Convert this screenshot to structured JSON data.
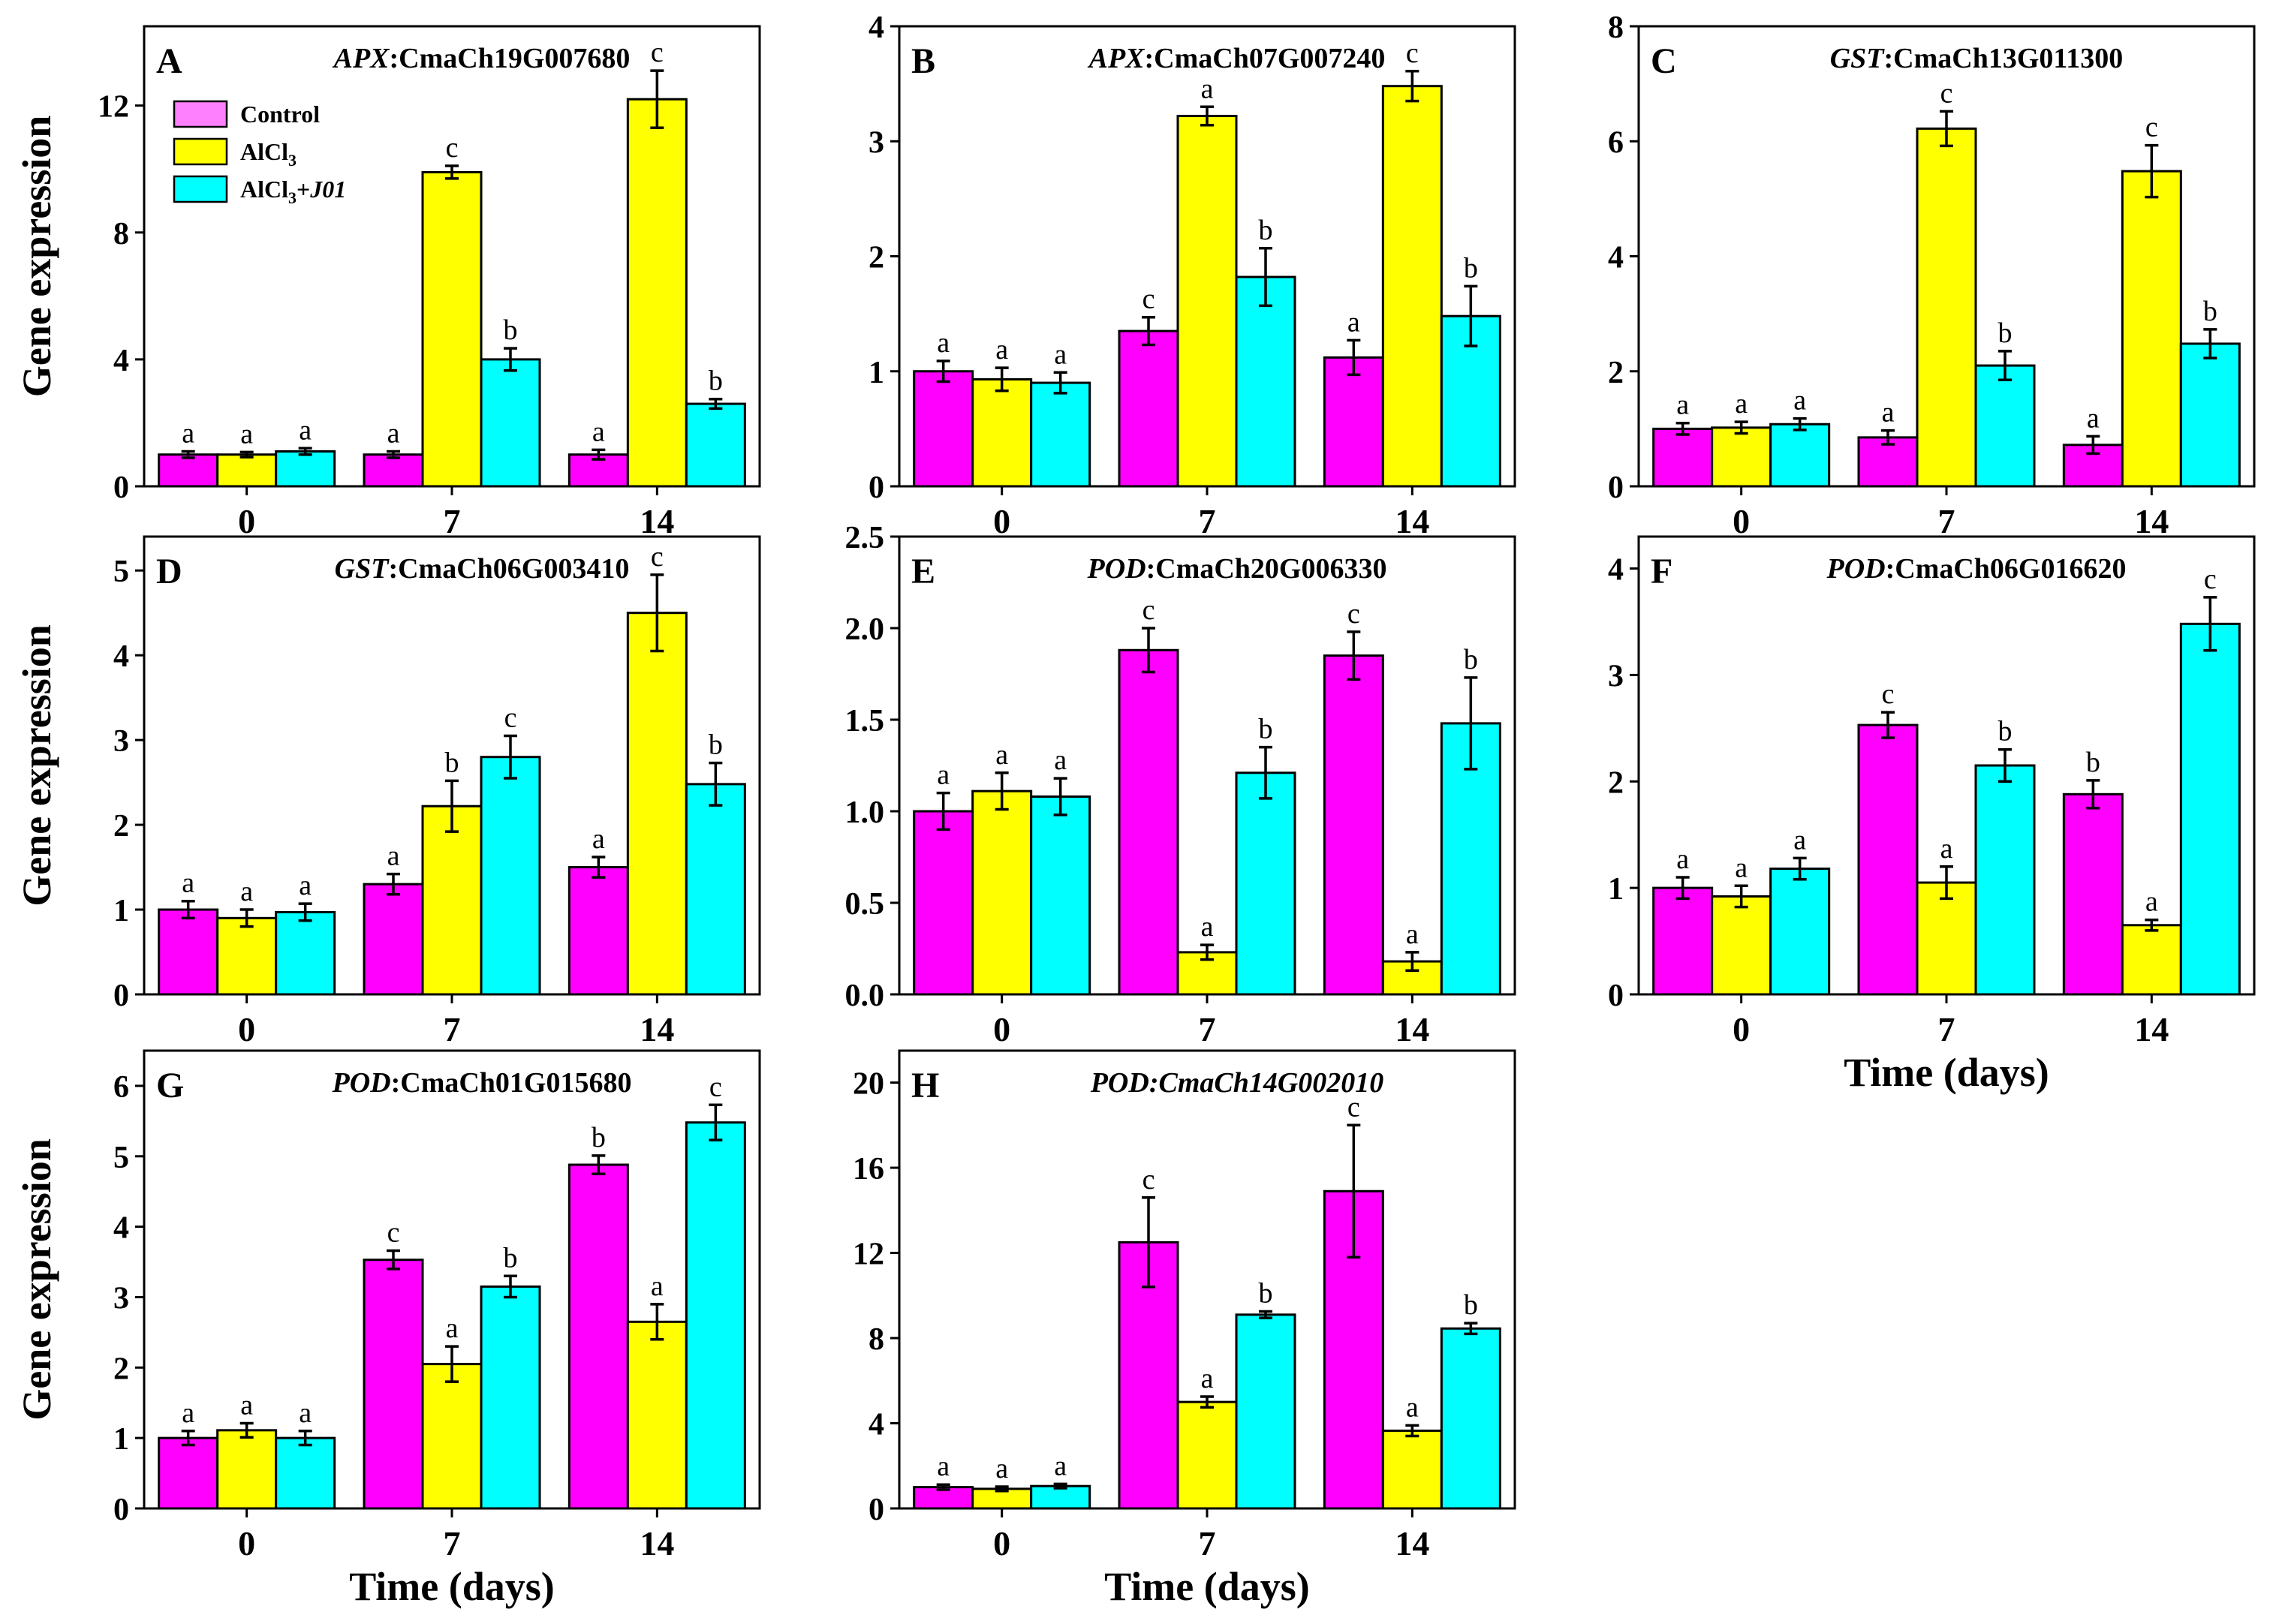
{
  "colors": {
    "control": "#ff00ff",
    "alcl3": "#ffff00",
    "alcl3_j01": "#00ffff",
    "control_legend": "#ff80ff",
    "axis": "#000000"
  },
  "legend": {
    "control": "Control",
    "alcl3_base": "AlCl",
    "alcl3_sub": "3",
    "j01_base": "AlCl",
    "j01_sub": "3",
    "j01_plus": "+",
    "j01_strain": "J01"
  },
  "chart_data": [
    {
      "type": "bar",
      "panel": "A",
      "gene_prefix": "APX",
      "gene_id": ":CmaCh19G007680",
      "categories": [
        "0",
        "7",
        "14"
      ],
      "ylim": [
        0,
        14.5
      ],
      "yticks": [
        "0",
        "4",
        "8",
        "12"
      ],
      "ytick_values": [
        0,
        4,
        8,
        12
      ],
      "ylabel": "Gene expression",
      "xlabel": "",
      "series": [
        {
          "name": "Control",
          "values": [
            1.0,
            1.0,
            1.0
          ],
          "errors": [
            0.1,
            0.1,
            0.15
          ],
          "letters": [
            "a",
            "a",
            "a"
          ]
        },
        {
          "name": "AlCl3",
          "values": [
            1.0,
            9.9,
            12.2
          ],
          "errors": [
            0.08,
            0.2,
            0.9
          ],
          "letters": [
            "a",
            "c",
            "c"
          ]
        },
        {
          "name": "AlCl3+J01",
          "values": [
            1.1,
            4.0,
            2.6
          ],
          "errors": [
            0.1,
            0.35,
            0.15
          ],
          "letters": [
            "a",
            "b",
            "b"
          ]
        }
      ]
    },
    {
      "type": "bar",
      "panel": "B",
      "gene_prefix": "APX",
      "gene_id": ":CmaCh07G007240",
      "categories": [
        "0",
        "7",
        "14"
      ],
      "ylim": [
        0,
        4
      ],
      "yticks": [
        "0",
        "1",
        "2",
        "3",
        "4"
      ],
      "ytick_values": [
        0,
        1,
        2,
        3,
        4
      ],
      "ylabel": "",
      "xlabel": "",
      "series": [
        {
          "name": "Control",
          "values": [
            1.0,
            1.35,
            1.12
          ],
          "errors": [
            0.09,
            0.12,
            0.15
          ],
          "letters": [
            "a",
            "c",
            "a"
          ]
        },
        {
          "name": "AlCl3",
          "values": [
            0.93,
            3.22,
            3.48
          ],
          "errors": [
            0.1,
            0.08,
            0.13
          ],
          "letters": [
            "a",
            "a",
            "c"
          ]
        },
        {
          "name": "AlCl3+J01",
          "values": [
            0.9,
            1.82,
            1.48
          ],
          "errors": [
            0.09,
            0.25,
            0.26
          ],
          "letters": [
            "a",
            "b",
            "b"
          ]
        }
      ]
    },
    {
      "type": "bar",
      "panel": "C",
      "gene_prefix": "GST",
      "gene_id": ":CmaCh13G011300",
      "categories": [
        "0",
        "7",
        "14"
      ],
      "ylim": [
        0,
        8
      ],
      "yticks": [
        "0",
        "2",
        "4",
        "6",
        "8"
      ],
      "ytick_values": [
        0,
        2,
        4,
        6,
        8
      ],
      "ylabel": "",
      "xlabel": "",
      "series": [
        {
          "name": "Control",
          "values": [
            1.0,
            0.85,
            0.72
          ],
          "errors": [
            0.1,
            0.12,
            0.15
          ],
          "letters": [
            "a",
            "a",
            "a"
          ]
        },
        {
          "name": "AlCl3",
          "values": [
            1.02,
            6.22,
            5.48
          ],
          "errors": [
            0.1,
            0.3,
            0.45
          ],
          "letters": [
            "a",
            "c",
            "c"
          ]
        },
        {
          "name": "AlCl3+J01",
          "values": [
            1.08,
            2.1,
            2.48
          ],
          "errors": [
            0.1,
            0.25,
            0.25
          ],
          "letters": [
            "a",
            "b",
            "b"
          ]
        }
      ]
    },
    {
      "type": "bar",
      "panel": "D",
      "gene_prefix": "GST",
      "gene_id": ":CmaCh06G003410",
      "categories": [
        "0",
        "7",
        "14"
      ],
      "ylim": [
        0,
        5.4
      ],
      "yticks": [
        "0",
        "1",
        "2",
        "3",
        "4",
        "5"
      ],
      "ytick_values": [
        0,
        1,
        2,
        3,
        4,
        5
      ],
      "ylabel": "Gene expression",
      "xlabel": "",
      "series": [
        {
          "name": "Control",
          "values": [
            1.0,
            1.3,
            1.5
          ],
          "errors": [
            0.1,
            0.12,
            0.12
          ],
          "letters": [
            "a",
            "a",
            "a"
          ]
        },
        {
          "name": "AlCl3",
          "values": [
            0.9,
            2.22,
            4.5
          ],
          "errors": [
            0.1,
            0.3,
            0.45
          ],
          "letters": [
            "a",
            "b",
            "c"
          ]
        },
        {
          "name": "AlCl3+J01",
          "values": [
            0.97,
            2.8,
            2.48
          ],
          "errors": [
            0.1,
            0.25,
            0.25
          ],
          "letters": [
            "a",
            "c",
            "b"
          ]
        }
      ]
    },
    {
      "type": "bar",
      "panel": "E",
      "gene_prefix": "POD",
      "gene_id": ":CmaCh20G006330",
      "categories": [
        "0",
        "7",
        "14"
      ],
      "ylim": [
        0,
        2.5
      ],
      "yticks": [
        "0.0",
        "0.5",
        "1.0",
        "1.5",
        "2.0",
        "2.5"
      ],
      "ytick_values": [
        0,
        0.5,
        1.0,
        1.5,
        2.0,
        2.5
      ],
      "ylabel": "",
      "xlabel": "",
      "series": [
        {
          "name": "Control",
          "values": [
            1.0,
            1.88,
            1.85
          ],
          "errors": [
            0.1,
            0.12,
            0.13
          ],
          "letters": [
            "a",
            "c",
            "c"
          ]
        },
        {
          "name": "AlCl3",
          "values": [
            1.11,
            0.23,
            0.18
          ],
          "errors": [
            0.1,
            0.04,
            0.05
          ],
          "letters": [
            "a",
            "a",
            "a"
          ]
        },
        {
          "name": "AlCl3+J01",
          "values": [
            1.08,
            1.21,
            1.48
          ],
          "errors": [
            0.1,
            0.14,
            0.25
          ],
          "letters": [
            "a",
            "b",
            "b"
          ]
        }
      ]
    },
    {
      "type": "bar",
      "panel": "F",
      "gene_prefix": "POD",
      "gene_id": ":CmaCh06G016620",
      "categories": [
        "0",
        "7",
        "14"
      ],
      "ylim": [
        0,
        4.3
      ],
      "yticks": [
        "0",
        "1",
        "2",
        "3",
        "4"
      ],
      "ytick_values": [
        0,
        1,
        2,
        3,
        4
      ],
      "ylabel": "",
      "xlabel": "Time (days)",
      "series": [
        {
          "name": "Control",
          "values": [
            1.0,
            2.53,
            1.88
          ],
          "errors": [
            0.1,
            0.12,
            0.13
          ],
          "letters": [
            "a",
            "c",
            "b"
          ]
        },
        {
          "name": "AlCl3",
          "values": [
            0.92,
            1.05,
            0.65
          ],
          "errors": [
            0.1,
            0.15,
            0.05
          ],
          "letters": [
            "a",
            "a",
            "a"
          ]
        },
        {
          "name": "AlCl3+J01",
          "values": [
            1.18,
            2.15,
            3.48
          ],
          "errors": [
            0.1,
            0.15,
            0.25
          ],
          "letters": [
            "a",
            "b",
            "c"
          ]
        }
      ]
    },
    {
      "type": "bar",
      "panel": "G",
      "gene_prefix": "POD",
      "gene_id": ":CmaCh01G015680",
      "categories": [
        "0",
        "7",
        "14"
      ],
      "ylim": [
        0,
        6.5
      ],
      "yticks": [
        "0",
        "1",
        "2",
        "3",
        "4",
        "5",
        "6"
      ],
      "ytick_values": [
        0,
        1,
        2,
        3,
        4,
        5,
        6
      ],
      "ylabel": "Gene expression",
      "xlabel": "Time (days)",
      "series": [
        {
          "name": "Control",
          "values": [
            1.0,
            3.53,
            4.88
          ],
          "errors": [
            0.1,
            0.13,
            0.13
          ],
          "letters": [
            "a",
            "c",
            "b"
          ]
        },
        {
          "name": "AlCl3",
          "values": [
            1.11,
            2.05,
            2.65
          ],
          "errors": [
            0.1,
            0.25,
            0.25
          ],
          "letters": [
            "a",
            "a",
            "a"
          ]
        },
        {
          "name": "AlCl3+J01",
          "values": [
            1.0,
            3.15,
            5.48
          ],
          "errors": [
            0.1,
            0.15,
            0.25
          ],
          "letters": [
            "a",
            "b",
            "c"
          ]
        }
      ]
    },
    {
      "type": "bar",
      "panel": "H",
      "gene_prefix": "POD",
      "gene_id": ":CmaCh14G002010",
      "categories": [
        "0",
        "7",
        "14"
      ],
      "ylim": [
        0,
        21.5
      ],
      "yticks": [
        "0",
        "4",
        "8",
        "12",
        "16",
        "20"
      ],
      "ytick_values": [
        0,
        4,
        8,
        12,
        16,
        20
      ],
      "ylabel": "",
      "xlabel": "Time (days)",
      "series": [
        {
          "name": "Control",
          "values": [
            1.0,
            12.5,
            14.9
          ],
          "errors": [
            0.12,
            2.1,
            3.1
          ],
          "letters": [
            "a",
            "c",
            "c"
          ]
        },
        {
          "name": "AlCl3",
          "values": [
            0.92,
            5.0,
            3.65
          ],
          "errors": [
            0.1,
            0.25,
            0.25
          ],
          "letters": [
            "a",
            "a",
            "a"
          ]
        },
        {
          "name": "AlCl3+J01",
          "values": [
            1.05,
            9.1,
            8.45
          ],
          "errors": [
            0.1,
            0.15,
            0.25
          ],
          "letters": [
            "a",
            "b",
            "b"
          ]
        }
      ]
    }
  ]
}
